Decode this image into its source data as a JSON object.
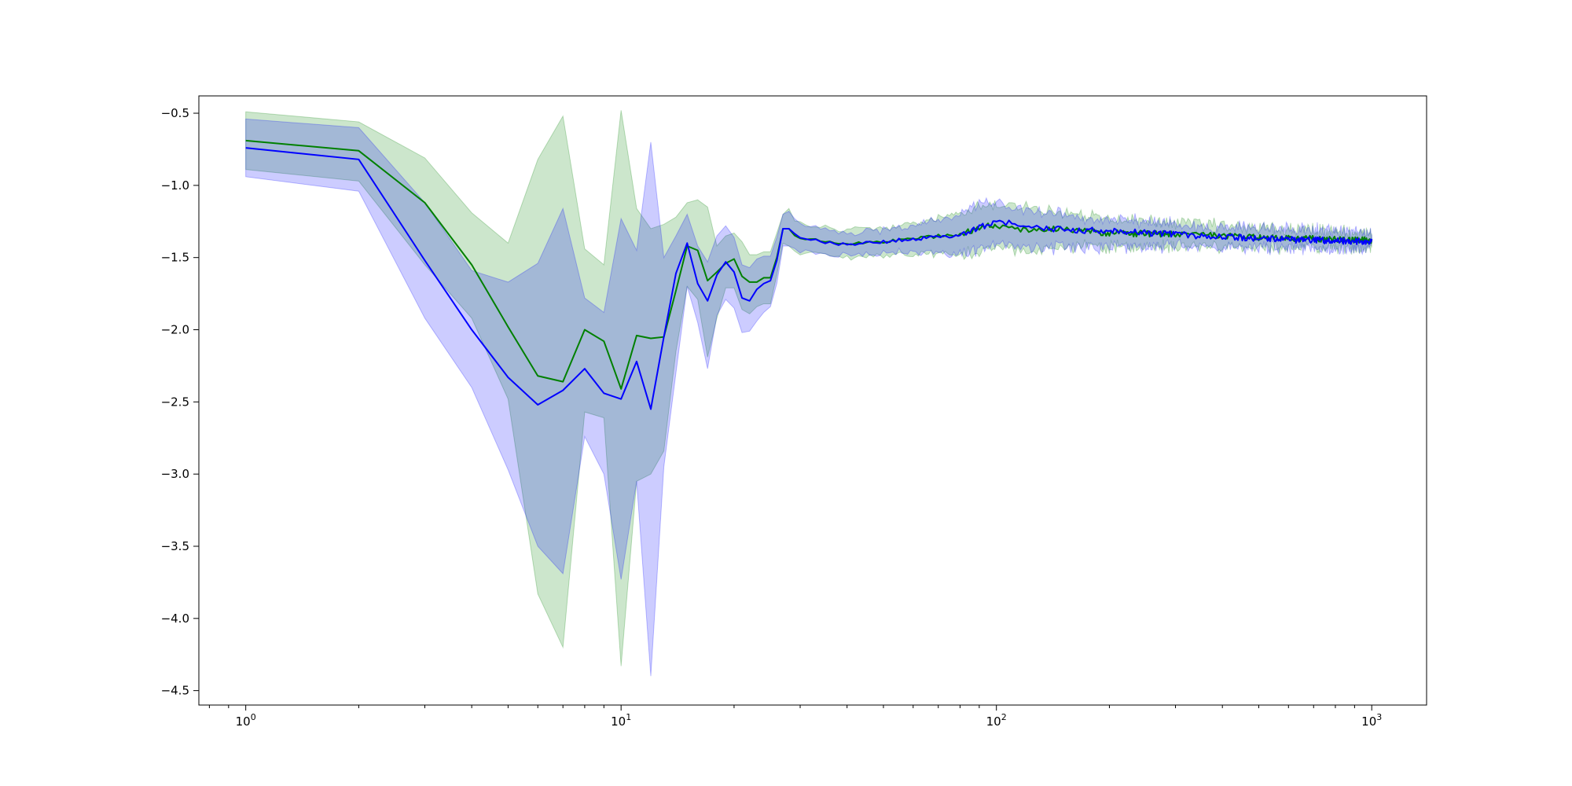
{
  "chart_data": {
    "type": "line",
    "title": "",
    "xlabel": "",
    "ylabel": "",
    "xscale": "log",
    "xlim": [
      0.75,
      1400
    ],
    "ylim": [
      -4.6,
      -0.38
    ],
    "grid": false,
    "legend": "none",
    "x_ticks": [
      {
        "value": 1,
        "label_base": "10",
        "label_exp": "0"
      },
      {
        "value": 10,
        "label_base": "10",
        "label_exp": "1"
      },
      {
        "value": 100,
        "label_base": "10",
        "label_exp": "2"
      },
      {
        "value": 1000,
        "label_base": "10",
        "label_exp": "3"
      }
    ],
    "y_ticks": [
      {
        "value": -0.5,
        "label": "−0.5"
      },
      {
        "value": -1.0,
        "label": "−1.0"
      },
      {
        "value": -1.5,
        "label": "−1.5"
      },
      {
        "value": -2.0,
        "label": "−2.0"
      },
      {
        "value": -2.5,
        "label": "−2.5"
      },
      {
        "value": -3.0,
        "label": "−3.0"
      },
      {
        "value": -3.5,
        "label": "−3.5"
      },
      {
        "value": -4.0,
        "label": "−4.0"
      },
      {
        "value": -4.5,
        "label": "−4.5"
      }
    ],
    "series": [
      {
        "color": "#008000",
        "band_color": "#008000",
        "band_opacity": 0.2,
        "x": [
          1,
          2,
          3,
          4,
          5,
          6,
          7,
          8,
          9,
          10,
          11,
          12,
          13,
          14,
          15,
          16,
          17,
          18,
          19,
          20,
          21,
          22,
          23,
          24,
          25,
          26,
          27,
          28,
          30,
          35,
          40,
          50,
          60,
          70,
          80,
          90,
          100,
          120,
          150,
          200,
          300,
          500,
          700,
          1000
        ],
        "mean": [
          -0.69,
          -0.76,
          -1.12,
          -1.55,
          -1.98,
          -2.32,
          -2.36,
          -2.0,
          -2.08,
          -2.41,
          -2.04,
          -2.06,
          -2.05,
          -1.73,
          -1.42,
          -1.45,
          -1.66,
          -1.6,
          -1.54,
          -1.51,
          -1.63,
          -1.67,
          -1.67,
          -1.64,
          -1.64,
          -1.5,
          -1.3,
          -1.3,
          -1.37,
          -1.39,
          -1.4,
          -1.39,
          -1.37,
          -1.35,
          -1.34,
          -1.29,
          -1.28,
          -1.31,
          -1.3,
          -1.33,
          -1.34,
          -1.36,
          -1.37,
          -1.38
        ],
        "upper": [
          -0.49,
          -0.56,
          -0.81,
          -1.19,
          -1.4,
          -0.82,
          -0.52,
          -1.44,
          -1.55,
          -0.48,
          -1.16,
          -1.3,
          -1.27,
          -1.22,
          -1.12,
          -1.1,
          -1.15,
          -1.42,
          -1.35,
          -1.33,
          -1.39,
          -1.48,
          -1.48,
          -1.46,
          -1.46,
          -1.33,
          -1.2,
          -1.16,
          -1.27,
          -1.29,
          -1.3,
          -1.3,
          -1.27,
          -1.23,
          -1.19,
          -1.13,
          -1.14,
          -1.15,
          -1.19,
          -1.23,
          -1.26,
          -1.3,
          -1.31,
          -1.33
        ],
        "lower": [
          -0.89,
          -0.97,
          -1.55,
          -1.92,
          -2.48,
          -3.83,
          -4.2,
          -2.57,
          -2.61,
          -4.33,
          -3.05,
          -3.0,
          -2.84,
          -2.15,
          -1.7,
          -1.79,
          -2.19,
          -1.92,
          -1.71,
          -1.71,
          -1.86,
          -1.89,
          -1.84,
          -1.82,
          -1.82,
          -1.62,
          -1.4,
          -1.42,
          -1.47,
          -1.49,
          -1.5,
          -1.49,
          -1.48,
          -1.47,
          -1.48,
          -1.45,
          -1.44,
          -1.46,
          -1.42,
          -1.43,
          -1.43,
          -1.43,
          -1.43,
          -1.43
        ]
      },
      {
        "color": "#0000ff",
        "band_color": "#0000ff",
        "band_opacity": 0.2,
        "x": [
          1,
          2,
          3,
          4,
          5,
          6,
          7,
          8,
          9,
          10,
          11,
          12,
          13,
          14,
          15,
          16,
          17,
          18,
          19,
          20,
          21,
          22,
          23,
          24,
          25,
          26,
          27,
          28,
          30,
          35,
          40,
          50,
          60,
          70,
          80,
          90,
          100,
          120,
          150,
          200,
          300,
          500,
          700,
          1000
        ],
        "mean": [
          -0.74,
          -0.82,
          -1.52,
          -2.0,
          -2.33,
          -2.52,
          -2.42,
          -2.27,
          -2.44,
          -2.48,
          -2.22,
          -2.55,
          -2.05,
          -1.61,
          -1.4,
          -1.68,
          -1.8,
          -1.62,
          -1.53,
          -1.6,
          -1.78,
          -1.8,
          -1.72,
          -1.68,
          -1.66,
          -1.52,
          -1.3,
          -1.3,
          -1.36,
          -1.4,
          -1.41,
          -1.39,
          -1.37,
          -1.36,
          -1.35,
          -1.29,
          -1.26,
          -1.27,
          -1.31,
          -1.31,
          -1.34,
          -1.37,
          -1.38,
          -1.39
        ],
        "upper": [
          -0.54,
          -0.6,
          -1.12,
          -1.59,
          -1.67,
          -1.54,
          -1.16,
          -1.78,
          -1.88,
          -1.23,
          -1.45,
          -0.7,
          -1.5,
          -1.35,
          -1.2,
          -1.42,
          -1.53,
          -1.35,
          -1.28,
          -1.36,
          -1.55,
          -1.57,
          -1.51,
          -1.49,
          -1.49,
          -1.36,
          -1.2,
          -1.18,
          -1.27,
          -1.31,
          -1.33,
          -1.31,
          -1.28,
          -1.24,
          -1.2,
          -1.12,
          -1.12,
          -1.16,
          -1.2,
          -1.23,
          -1.27,
          -1.3,
          -1.31,
          -1.33
        ],
        "lower": [
          -0.94,
          -1.04,
          -1.92,
          -2.4,
          -2.97,
          -3.5,
          -3.69,
          -2.74,
          -3.0,
          -3.73,
          -3.05,
          -4.4,
          -2.95,
          -2.3,
          -1.7,
          -1.95,
          -2.27,
          -1.9,
          -1.79,
          -1.85,
          -2.02,
          -2.01,
          -1.94,
          -1.88,
          -1.84,
          -1.68,
          -1.42,
          -1.42,
          -1.45,
          -1.49,
          -1.49,
          -1.47,
          -1.46,
          -1.47,
          -1.48,
          -1.44,
          -1.42,
          -1.43,
          -1.43,
          -1.42,
          -1.42,
          -1.43,
          -1.44,
          -1.44
        ]
      }
    ]
  }
}
